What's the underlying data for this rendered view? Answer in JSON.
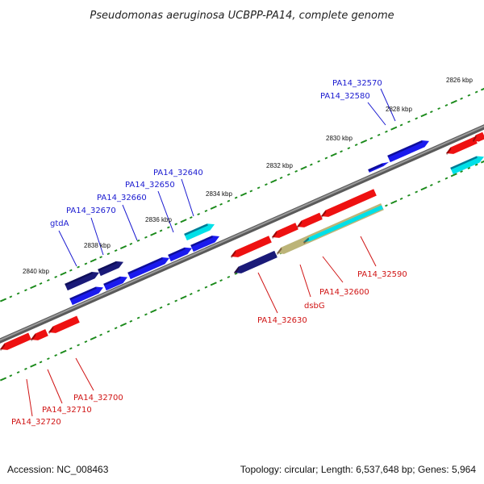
{
  "title": "Pseudomonas aeruginosa UCBPP-PA14, complete genome",
  "footer": {
    "accession": "Accession: NC_008463",
    "summary": "Topology: circular; Length: 6,537,648 bp; Genes: 5,964"
  },
  "colors": {
    "forward_gene": "#1a1aee",
    "forward_dark": "#1a1a78",
    "reverse_gene": "#ee1111",
    "highlight_cyan": "#00e0e8",
    "highlight_tan": "#bcb478",
    "backbone": "#7a7a7a",
    "tick": "#1a8a1a"
  },
  "scale_labels": [
    "2826 kbp",
    "2828 kbp",
    "2830 kbp",
    "2832 kbp",
    "2834 kbp",
    "2836 kbp",
    "2838 kbp",
    "2840 kbp"
  ],
  "gene_labels": {
    "top": [
      "PA14_32570",
      "PA14_32580",
      "PA14_32640",
      "PA14_32650",
      "PA14_32660",
      "PA14_32670",
      "gtdA"
    ],
    "bottom": [
      "PA14_32590",
      "PA14_32600",
      "dsbG",
      "PA14_32630",
      "PA14_32700",
      "PA14_32710",
      "PA14_32720"
    ]
  }
}
